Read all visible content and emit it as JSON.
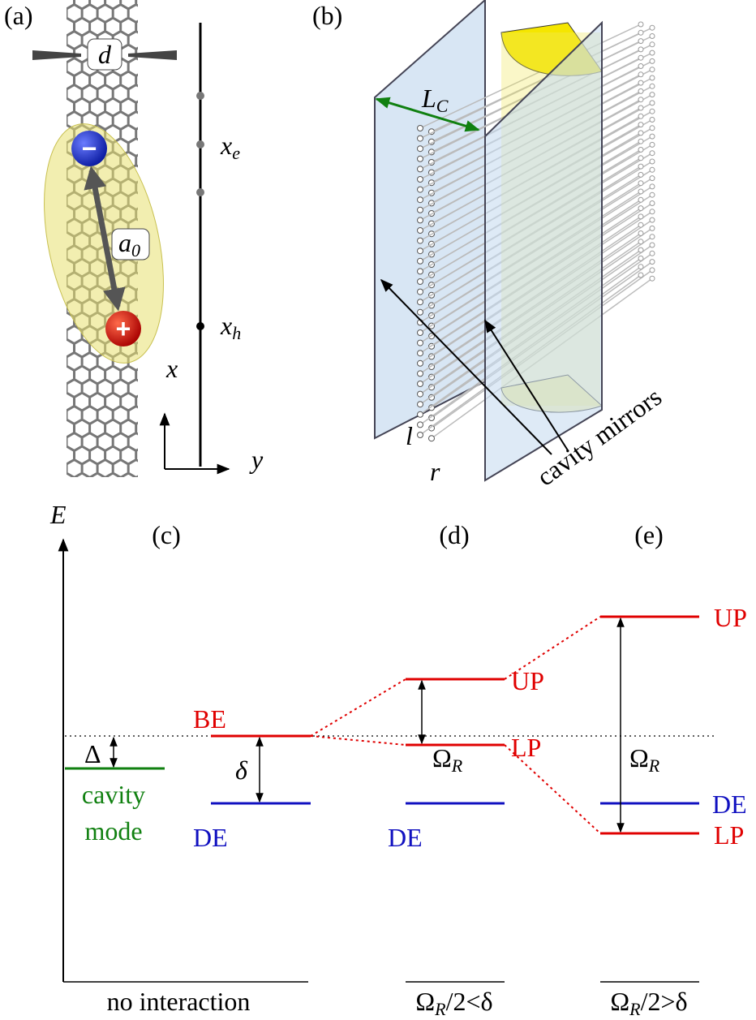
{
  "panels": {
    "a": {
      "label": "(a)",
      "diameter": "d",
      "separation": {
        "base": "a",
        "sub": "0"
      },
      "electron_sign": "−",
      "hole_sign": "+",
      "electron_pos": {
        "base": "x",
        "sub": "e"
      },
      "hole_pos": {
        "base": "x",
        "sub": "h"
      },
      "x_axis": "x",
      "y_axis": "y"
    },
    "b": {
      "label": "(b)",
      "cavity_length": {
        "base": "L",
        "sub": "C"
      },
      "tube_length": "l",
      "spacing": "r",
      "mirrors": "cavity mirrors"
    },
    "c": {
      "label": "(c)",
      "energy_axis": "E",
      "detuning": "Δ",
      "splitting": "δ",
      "cavity_line1": "cavity",
      "cavity_line2": "mode",
      "bright": "BE",
      "dark": "DE",
      "caption": "no interaction"
    },
    "d": {
      "label": "(d)",
      "upper": "UP",
      "lower": "LP",
      "rabi": {
        "base": "Ω",
        "sub": "R"
      },
      "dark": "DE",
      "caption": {
        "base": "Ω",
        "sub": "R",
        "rest": "/2<δ"
      }
    },
    "e": {
      "label": "(e)",
      "upper": "UP",
      "lower": "LP",
      "rabi": {
        "base": "Ω",
        "sub": "R"
      },
      "dark": "DE",
      "caption": {
        "base": "Ω",
        "sub": "R",
        "rest": "/2>δ"
      }
    }
  }
}
